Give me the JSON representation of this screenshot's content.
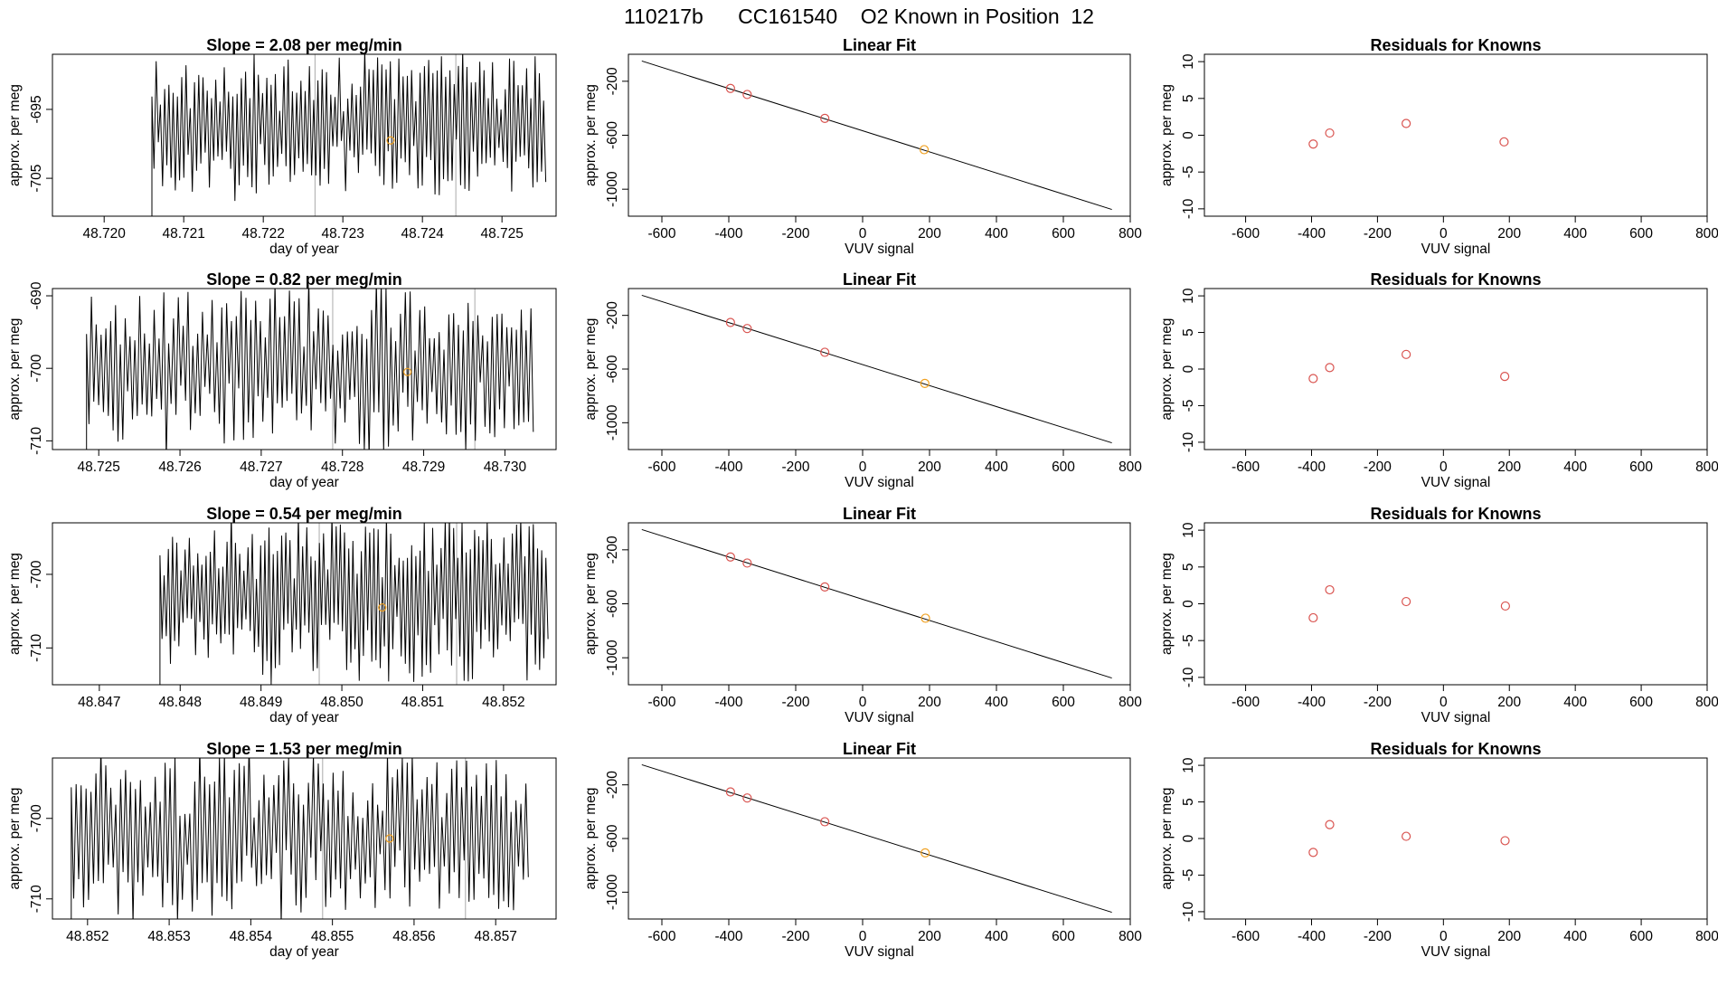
{
  "figure": {
    "title": "110217b      CC161540    O2 Known in Position  12"
  },
  "colors": {
    "line": "#000000",
    "marker_unknown": "#d9534f",
    "marker_known": "#f0a020",
    "vline": "#aaaaaa",
    "frame": "#000000"
  },
  "chart_data": [
    {
      "type": "line",
      "row": 0,
      "col": 0,
      "title": "Slope =  2.08  per meg/min",
      "xlabel": "day of year",
      "ylabel": "approx. per meg",
      "xlim": [
        48.71935,
        48.72568
      ],
      "ylim": [
        -710.5,
        -687.0
      ],
      "x_ticks": [
        48.72,
        48.721,
        48.722,
        48.723,
        48.724,
        48.725
      ],
      "x_tick_labels": [
        "48.720",
        "48.721",
        "48.722",
        "48.723",
        "48.724",
        "48.725"
      ],
      "y_ticks": [
        -695,
        -705
      ],
      "y_tick_labels": [
        "-695",
        "-705"
      ],
      "series_start": 48.7206,
      "series_end": 48.72555,
      "series_seed": 11,
      "series_center": -697,
      "series_amp": 8,
      "marker": {
        "x": 48.7236,
        "y": -699.5
      },
      "vlines": [
        48.72265,
        48.72442
      ]
    },
    {
      "type": "line",
      "row": 1,
      "col": 0,
      "title": "Slope =  0.82  per meg/min",
      "xlabel": "day of year",
      "ylabel": "approx. per meg",
      "xlim": [
        48.72443,
        48.73063
      ],
      "ylim": [
        -711.2,
        -689.0
      ],
      "x_ticks": [
        48.725,
        48.726,
        48.727,
        48.728,
        48.729,
        48.73
      ],
      "x_tick_labels": [
        "48.725",
        "48.726",
        "48.727",
        "48.728",
        "48.729",
        "48.730"
      ],
      "y_ticks": [
        -690,
        -700,
        -710
      ],
      "y_tick_labels": [
        "-690",
        "-700",
        "-710"
      ],
      "series_start": 48.72485,
      "series_end": 48.73035,
      "series_seed": 23,
      "series_center": -700,
      "series_amp": 9,
      "marker": {
        "x": 48.7288,
        "y": -700.5
      },
      "vlines": [
        48.72788,
        48.72963
      ]
    },
    {
      "type": "line",
      "row": 2,
      "col": 0,
      "title": "Slope =  0.54  per meg/min",
      "xlabel": "day of year",
      "ylabel": "approx. per meg",
      "xlim": [
        48.84642,
        48.85265
      ],
      "ylim": [
        -715.0,
        -693.0
      ],
      "x_ticks": [
        48.847,
        48.848,
        48.849,
        48.85,
        48.851,
        48.852
      ],
      "x_tick_labels": [
        "48.847",
        "48.848",
        "48.849",
        "48.850",
        "48.851",
        "48.852"
      ],
      "y_ticks": [
        -700,
        -710
      ],
      "y_tick_labels": [
        "-700",
        "-710"
      ],
      "series_start": 48.84775,
      "series_end": 48.85255,
      "series_seed": 37,
      "series_center": -703,
      "series_amp": 9,
      "marker": {
        "x": 48.8505,
        "y": -704.5
      },
      "vlines": [
        48.84972,
        48.85142
      ]
    },
    {
      "type": "line",
      "row": 3,
      "col": 0,
      "title": "Slope =  1.53  per meg/min",
      "xlabel": "day of year",
      "ylabel": "approx. per meg",
      "xlim": [
        48.85157,
        48.85774
      ],
      "ylim": [
        -712.5,
        -692.5
      ],
      "x_ticks": [
        48.852,
        48.853,
        48.854,
        48.855,
        48.856,
        48.857
      ],
      "x_tick_labels": [
        "48.852",
        "48.853",
        "48.854",
        "48.855",
        "48.856",
        "48.857"
      ],
      "y_ticks": [
        -700,
        -710
      ],
      "y_tick_labels": [
        "-700",
        "-710"
      ],
      "series_start": 48.8518,
      "series_end": 48.8574,
      "series_seed": 51,
      "series_center": -702,
      "series_amp": 8,
      "marker": {
        "x": 48.8557,
        "y": -702.5
      },
      "vlines": [
        48.85488,
        48.85663
      ]
    },
    {
      "type": "scatter",
      "row": 0,
      "col": 1,
      "title": "Linear Fit",
      "xlabel": "VUV signal",
      "ylabel": "approx. per meg",
      "xlim": [
        -700,
        800
      ],
      "ylim": [
        -1200,
        0
      ],
      "x_ticks": [
        -600,
        -400,
        -200,
        0,
        200,
        400,
        600,
        800
      ],
      "x_tick_labels": [
        "-600",
        "-400",
        "-200",
        "0",
        "200",
        "400",
        "600",
        "800"
      ],
      "y_ticks": [
        -200,
        -600,
        -1000
      ],
      "y_tick_labels": [
        "-200",
        "-600",
        "-1000"
      ],
      "fit_line": {
        "x": [
          -660,
          745
        ],
        "y": [
          -50,
          -1150
        ]
      },
      "points": [
        {
          "x": -395,
          "y": -253
        },
        {
          "x": -345,
          "y": -298
        },
        {
          "x": -113,
          "y": -475
        }
      ],
      "known_points": [
        {
          "x": 184,
          "y": -707
        }
      ]
    },
    {
      "type": "scatter",
      "row": 1,
      "col": 1,
      "title": "Linear Fit",
      "xlabel": "VUV signal",
      "ylabel": "approx. per meg",
      "xlim": [
        -700,
        800
      ],
      "ylim": [
        -1200,
        0
      ],
      "x_ticks": [
        -600,
        -400,
        -200,
        0,
        200,
        400,
        600,
        800
      ],
      "x_tick_labels": [
        "-600",
        "-400",
        "-200",
        "0",
        "200",
        "400",
        "600",
        "800"
      ],
      "y_ticks": [
        -200,
        -600,
        -1000
      ],
      "y_tick_labels": [
        "-200",
        "-600",
        "-1000"
      ],
      "fit_line": {
        "x": [
          -660,
          745
        ],
        "y": [
          -50,
          -1150
        ]
      },
      "points": [
        {
          "x": -395,
          "y": -253
        },
        {
          "x": -345,
          "y": -298
        },
        {
          "x": -113,
          "y": -475
        }
      ],
      "known_points": [
        {
          "x": 186,
          "y": -707
        }
      ]
    },
    {
      "type": "scatter",
      "row": 2,
      "col": 1,
      "title": "Linear Fit",
      "xlabel": "VUV signal",
      "ylabel": "approx. per meg",
      "xlim": [
        -700,
        800
      ],
      "ylim": [
        -1200,
        0
      ],
      "x_ticks": [
        -600,
        -400,
        -200,
        0,
        200,
        400,
        600,
        800
      ],
      "x_tick_labels": [
        "-600",
        "-400",
        "-200",
        "0",
        "200",
        "400",
        "600",
        "800"
      ],
      "y_ticks": [
        -200,
        -600,
        -1000
      ],
      "y_tick_labels": [
        "-200",
        "-600",
        "-1000"
      ],
      "fit_line": {
        "x": [
          -660,
          745
        ],
        "y": [
          -50,
          -1150
        ]
      },
      "points": [
        {
          "x": -395,
          "y": -253
        },
        {
          "x": -345,
          "y": -298
        },
        {
          "x": -113,
          "y": -475
        }
      ],
      "known_points": [
        {
          "x": 188,
          "y": -707
        }
      ]
    },
    {
      "type": "scatter",
      "row": 3,
      "col": 1,
      "title": "Linear Fit",
      "xlabel": "VUV signal",
      "ylabel": "approx. per meg",
      "xlim": [
        -700,
        800
      ],
      "ylim": [
        -1200,
        0
      ],
      "x_ticks": [
        -600,
        -400,
        -200,
        0,
        200,
        400,
        600,
        800
      ],
      "x_tick_labels": [
        "-600",
        "-400",
        "-200",
        "0",
        "200",
        "400",
        "600",
        "800"
      ],
      "y_ticks": [
        -200,
        -600,
        -1000
      ],
      "y_tick_labels": [
        "-200",
        "-600",
        "-1000"
      ],
      "fit_line": {
        "x": [
          -660,
          745
        ],
        "y": [
          -50,
          -1150
        ]
      },
      "points": [
        {
          "x": -395,
          "y": -253
        },
        {
          "x": -345,
          "y": -298
        },
        {
          "x": -113,
          "y": -475
        }
      ],
      "known_points": [
        {
          "x": 187,
          "y": -707
        }
      ]
    },
    {
      "type": "scatter",
      "row": 0,
      "col": 2,
      "title": "Residuals for Knowns",
      "xlabel": "VUV signal",
      "ylabel": "approx. per meg",
      "xlim": [
        -725,
        800
      ],
      "ylim": [
        -11,
        11
      ],
      "x_ticks": [
        -600,
        -400,
        -200,
        0,
        200,
        400,
        600,
        800
      ],
      "x_tick_labels": [
        "-600",
        "-400",
        "-200",
        "0",
        "200",
        "400",
        "600",
        "800"
      ],
      "y_ticks": [
        10,
        5,
        0,
        -5,
        -10
      ],
      "y_tick_labels": [
        "10",
        "5",
        "0",
        "-5",
        "-10"
      ],
      "points": [
        {
          "x": -395,
          "y": -1.2
        },
        {
          "x": -345,
          "y": 0.3
        },
        {
          "x": -113,
          "y": 1.6
        },
        {
          "x": 184,
          "y": -0.9
        }
      ],
      "known_points": []
    },
    {
      "type": "scatter",
      "row": 1,
      "col": 2,
      "title": "Residuals for Knowns",
      "xlabel": "VUV signal",
      "ylabel": "approx. per meg",
      "xlim": [
        -725,
        800
      ],
      "ylim": [
        -11,
        11
      ],
      "x_ticks": [
        -600,
        -400,
        -200,
        0,
        200,
        400,
        600,
        800
      ],
      "x_tick_labels": [
        "-600",
        "-400",
        "-200",
        "0",
        "200",
        "400",
        "600",
        "800"
      ],
      "y_ticks": [
        10,
        5,
        0,
        -5,
        -10
      ],
      "y_tick_labels": [
        "10",
        "5",
        "0",
        "-5",
        "-10"
      ],
      "points": [
        {
          "x": -395,
          "y": -1.3
        },
        {
          "x": -345,
          "y": 0.2
        },
        {
          "x": -113,
          "y": 2.0
        },
        {
          "x": 186,
          "y": -1.0
        }
      ],
      "known_points": []
    },
    {
      "type": "scatter",
      "row": 2,
      "col": 2,
      "title": "Residuals for Knowns",
      "xlabel": "VUV signal",
      "ylabel": "approx. per meg",
      "xlim": [
        -725,
        800
      ],
      "ylim": [
        -11,
        11
      ],
      "x_ticks": [
        -600,
        -400,
        -200,
        0,
        200,
        400,
        600,
        800
      ],
      "x_tick_labels": [
        "-600",
        "-400",
        "-200",
        "0",
        "200",
        "400",
        "600",
        "800"
      ],
      "y_ticks": [
        10,
        5,
        0,
        -5,
        -10
      ],
      "y_tick_labels": [
        "10",
        "5",
        "0",
        "-5",
        "-10"
      ],
      "points": [
        {
          "x": -395,
          "y": -1.9
        },
        {
          "x": -345,
          "y": 1.9
        },
        {
          "x": -113,
          "y": 0.3
        },
        {
          "x": 188,
          "y": -0.3
        }
      ],
      "known_points": []
    },
    {
      "type": "scatter",
      "row": 3,
      "col": 2,
      "title": "Residuals for Knowns",
      "xlabel": "VUV signal",
      "ylabel": "approx. per meg",
      "xlim": [
        -725,
        800
      ],
      "ylim": [
        -11,
        11
      ],
      "x_ticks": [
        -600,
        -400,
        -200,
        0,
        200,
        400,
        600,
        800
      ],
      "x_tick_labels": [
        "-600",
        "-400",
        "-200",
        "0",
        "200",
        "400",
        "600",
        "800"
      ],
      "y_ticks": [
        10,
        5,
        0,
        -5,
        -10
      ],
      "y_tick_labels": [
        "10",
        "5",
        "0",
        "-5",
        "-10"
      ],
      "points": [
        {
          "x": -395,
          "y": -1.9
        },
        {
          "x": -345,
          "y": 1.9
        },
        {
          "x": -113,
          "y": 0.3
        },
        {
          "x": 187,
          "y": -0.3
        }
      ],
      "known_points": []
    }
  ]
}
